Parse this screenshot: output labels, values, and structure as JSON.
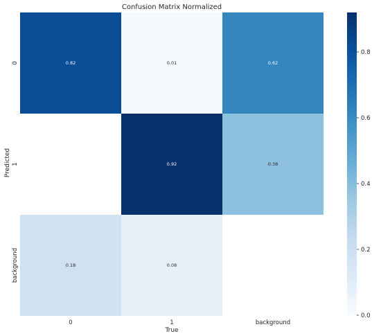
{
  "chart_data": {
    "type": "heatmap",
    "title": "Confusion Matrix Normalized",
    "xlabel": "True",
    "ylabel": "Predicted",
    "x_categories": [
      "0",
      "1",
      "background"
    ],
    "y_categories": [
      "0",
      "1",
      "background"
    ],
    "values": [
      [
        0.82,
        0.01,
        0.62
      ],
      [
        null,
        0.92,
        0.38
      ],
      [
        0.18,
        0.08,
        null
      ]
    ],
    "cell_labels": [
      [
        "0.82",
        "0.01",
        "0.62"
      ],
      [
        "",
        "0.92",
        "0.38"
      ],
      [
        "0.18",
        "0.08",
        ""
      ]
    ],
    "colormap": "Blues",
    "color_range": [
      0.0,
      0.92
    ],
    "colorbar_ticks": [
      "0.0",
      "0.2",
      "0.4",
      "0.6",
      "0.8"
    ],
    "colorbar_tick_values": [
      0.0,
      0.2,
      0.4,
      0.6,
      0.8
    ]
  }
}
